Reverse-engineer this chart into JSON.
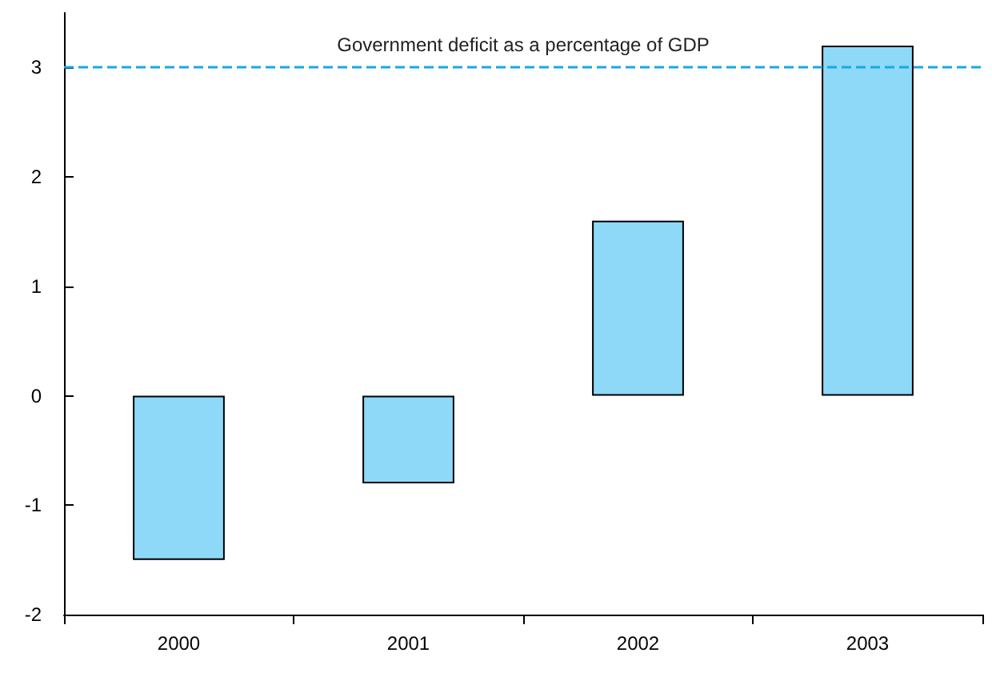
{
  "chart_data": {
    "type": "bar",
    "categories": [
      "2000",
      "2001",
      "2002",
      "2003"
    ],
    "values": [
      -1.5,
      -0.8,
      1.6,
      3.2
    ],
    "color": "#8ed8f8",
    "ylim": [
      -2,
      3.5
    ],
    "yticks": [
      -2,
      -1,
      0,
      1,
      2,
      3
    ],
    "grid": false,
    "ref_lines": [
      {
        "axis": "y",
        "value": 3,
        "label": "Government deficit as a percentage of GDP",
        "color": "#14a9e6",
        "line_style": "dashed"
      }
    ]
  }
}
